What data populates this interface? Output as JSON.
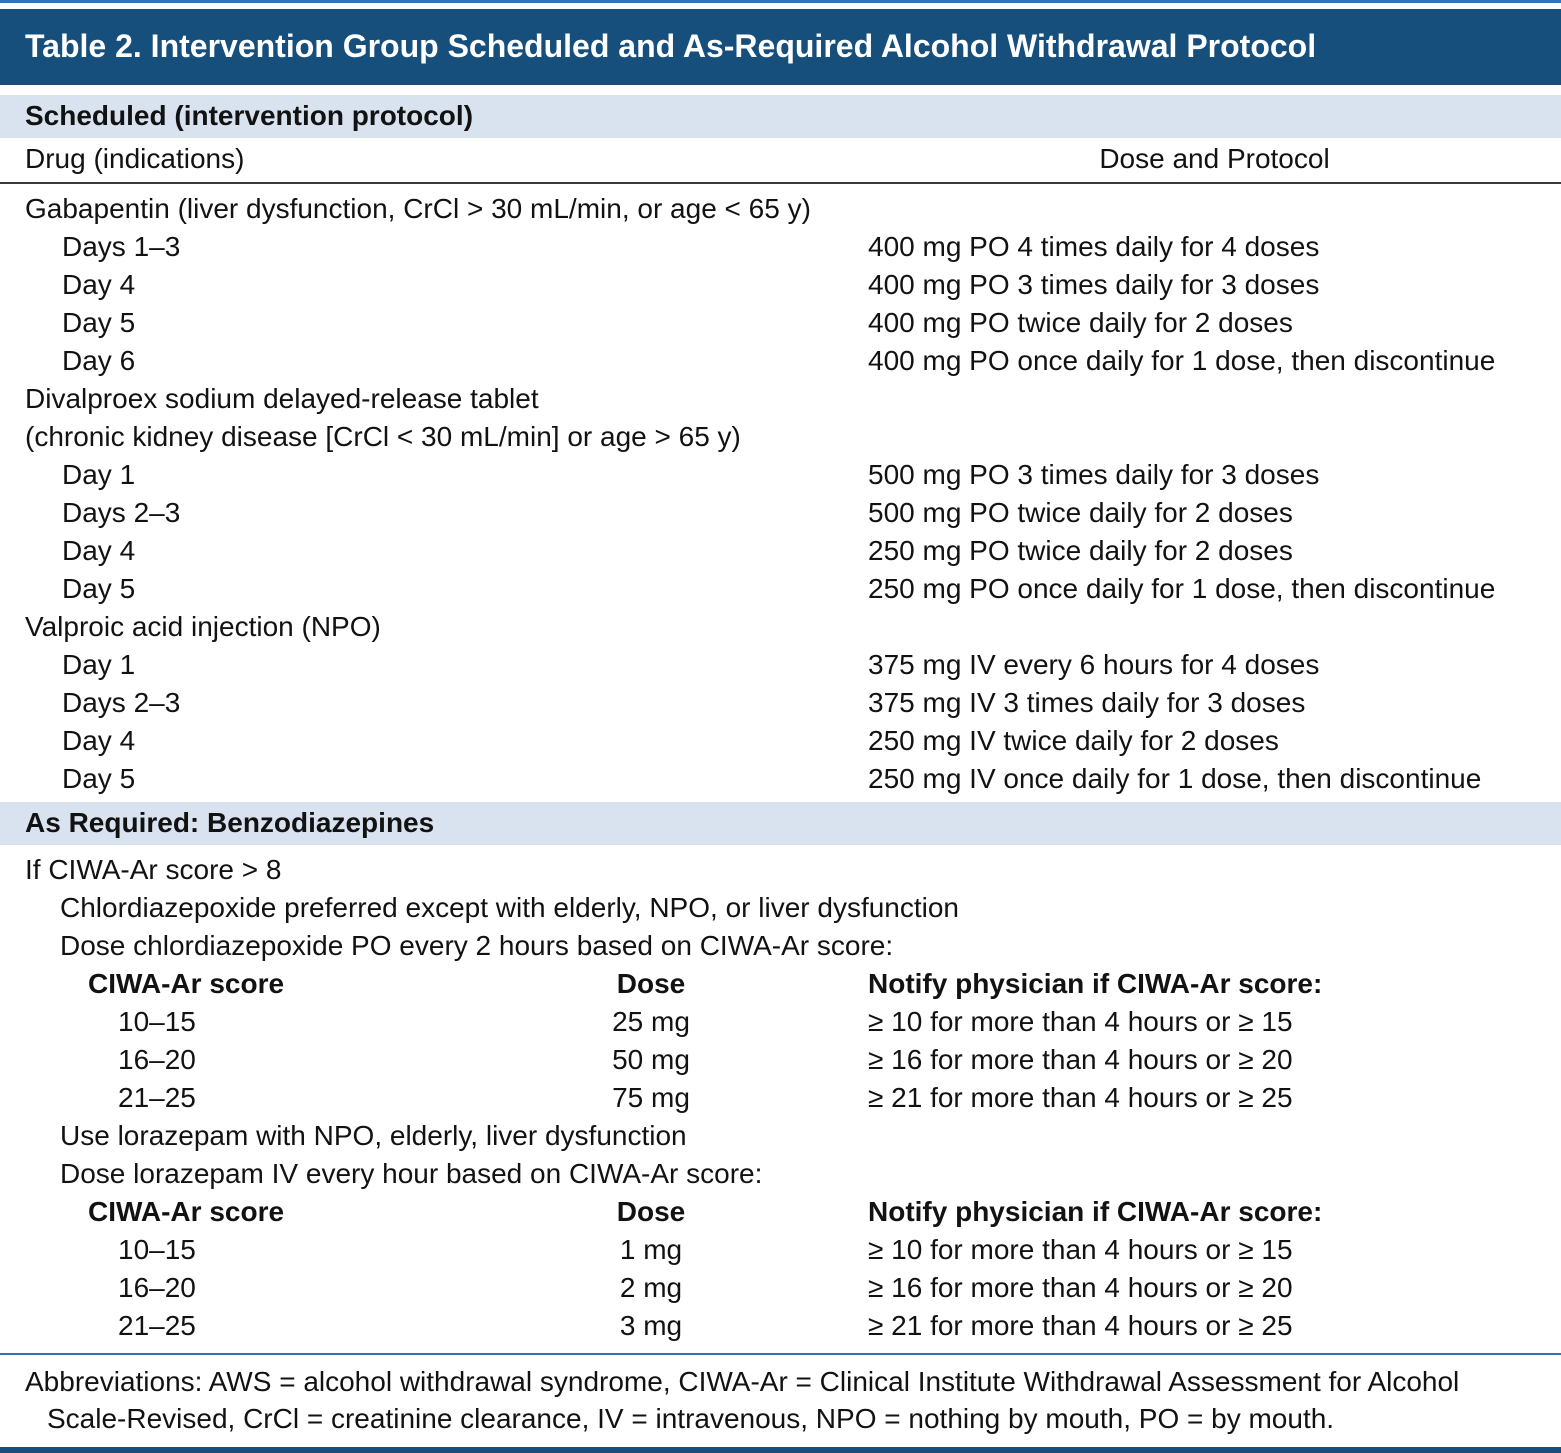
{
  "title": "Table 2. Intervention Group Scheduled and As-Required Alcohol Withdrawal Protocol",
  "colors": {
    "header_bg": "#174f7c",
    "section_bg": "#d9e3f0",
    "rule_blue": "#2e74b5",
    "text_color": "#121212"
  },
  "scheduled": {
    "header": "Scheduled (intervention protocol)",
    "col_drug": "Drug (indications)",
    "col_dose": "Dose and Protocol",
    "groups": [
      {
        "name": "Gabapentin (liver dysfunction, CrCl > 30 mL/min, or age < 65 y)",
        "name2": "",
        "rows": [
          {
            "label": "Days 1–3",
            "dose": "400 mg PO 4 times daily for 4 doses"
          },
          {
            "label": "Day 4",
            "dose": "400 mg PO 3 times daily for 3 doses"
          },
          {
            "label": "Day 5",
            "dose": "400 mg PO twice daily for 2 doses"
          },
          {
            "label": "Day 6",
            "dose": "400 mg PO once daily for 1 dose, then discontinue"
          }
        ]
      },
      {
        "name": "Divalproex sodium delayed-release tablet",
        "name2": "(chronic kidney disease [CrCl < 30 mL/min] or age > 65 y)",
        "rows": [
          {
            "label": "Day 1",
            "dose": "500 mg PO 3 times daily for 3 doses"
          },
          {
            "label": "Days 2–3",
            "dose": "500 mg PO twice daily for 2 doses"
          },
          {
            "label": "Day 4",
            "dose": "250 mg PO twice daily for 2 doses"
          },
          {
            "label": "Day 5",
            "dose": "250 mg PO once daily for 1 dose, then discontinue"
          }
        ]
      },
      {
        "name": "Valproic acid injection (NPO)",
        "name2": "",
        "rows": [
          {
            "label": "Day 1",
            "dose": "375 mg IV every 6 hours for 4 doses"
          },
          {
            "label": "Days 2–3",
            "dose": "375 mg IV 3 times daily for 3 doses"
          },
          {
            "label": "Day 4",
            "dose": "250 mg IV twice daily for 2 doses"
          },
          {
            "label": "Day 5",
            "dose": "250 mg IV once daily for 1 dose, then discontinue"
          }
        ]
      }
    ]
  },
  "as_required": {
    "header": "As Required: Benzodiazepines",
    "intro": "If CIWA-Ar score > 8",
    "blocks": [
      {
        "line1": "Chlordiazepoxide preferred except with elderly, NPO, or liver dysfunction",
        "line2": "Dose chlordiazepoxide PO every 2 hours based on CIWA-Ar score:",
        "col_score": "CIWA-Ar score",
        "col_dose": "Dose",
        "col_notify": "Notify physician if CIWA-Ar score:",
        "rows": [
          {
            "score": "10–15",
            "dose": "25 mg",
            "notify": "≥ 10 for more than 4 hours or ≥ 15"
          },
          {
            "score": "16–20",
            "dose": "50 mg",
            "notify": "≥ 16 for more than 4 hours or ≥ 20"
          },
          {
            "score": "21–25",
            "dose": "75 mg",
            "notify": "≥ 21 for more than 4 hours or ≥ 25"
          }
        ]
      },
      {
        "line1": "Use lorazepam with NPO, elderly, liver dysfunction",
        "line2": "Dose lorazepam IV every hour based on CIWA-Ar score:",
        "col_score": "CIWA-Ar score",
        "col_dose": "Dose",
        "col_notify": "Notify physician if CIWA-Ar score:",
        "rows": [
          {
            "score": "10–15",
            "dose": "1 mg",
            "notify": "≥ 10 for more than 4 hours or ≥ 15"
          },
          {
            "score": "16–20",
            "dose": "2 mg",
            "notify": "≥ 16 for more than 4 hours or ≥ 20"
          },
          {
            "score": "21–25",
            "dose": "3 mg",
            "notify": "≥ 21 for more than 4 hours or ≥ 25"
          }
        ]
      }
    ]
  },
  "footer": {
    "abbreviations": "Abbreviations: AWS = alcohol withdrawal syndrome, CIWA-Ar = Clinical Institute Withdrawal Assessment for Alcohol Scale-Revised, CrCl = creatinine clearance, IV = intravenous, NPO = nothing by mouth, PO = by mouth."
  }
}
